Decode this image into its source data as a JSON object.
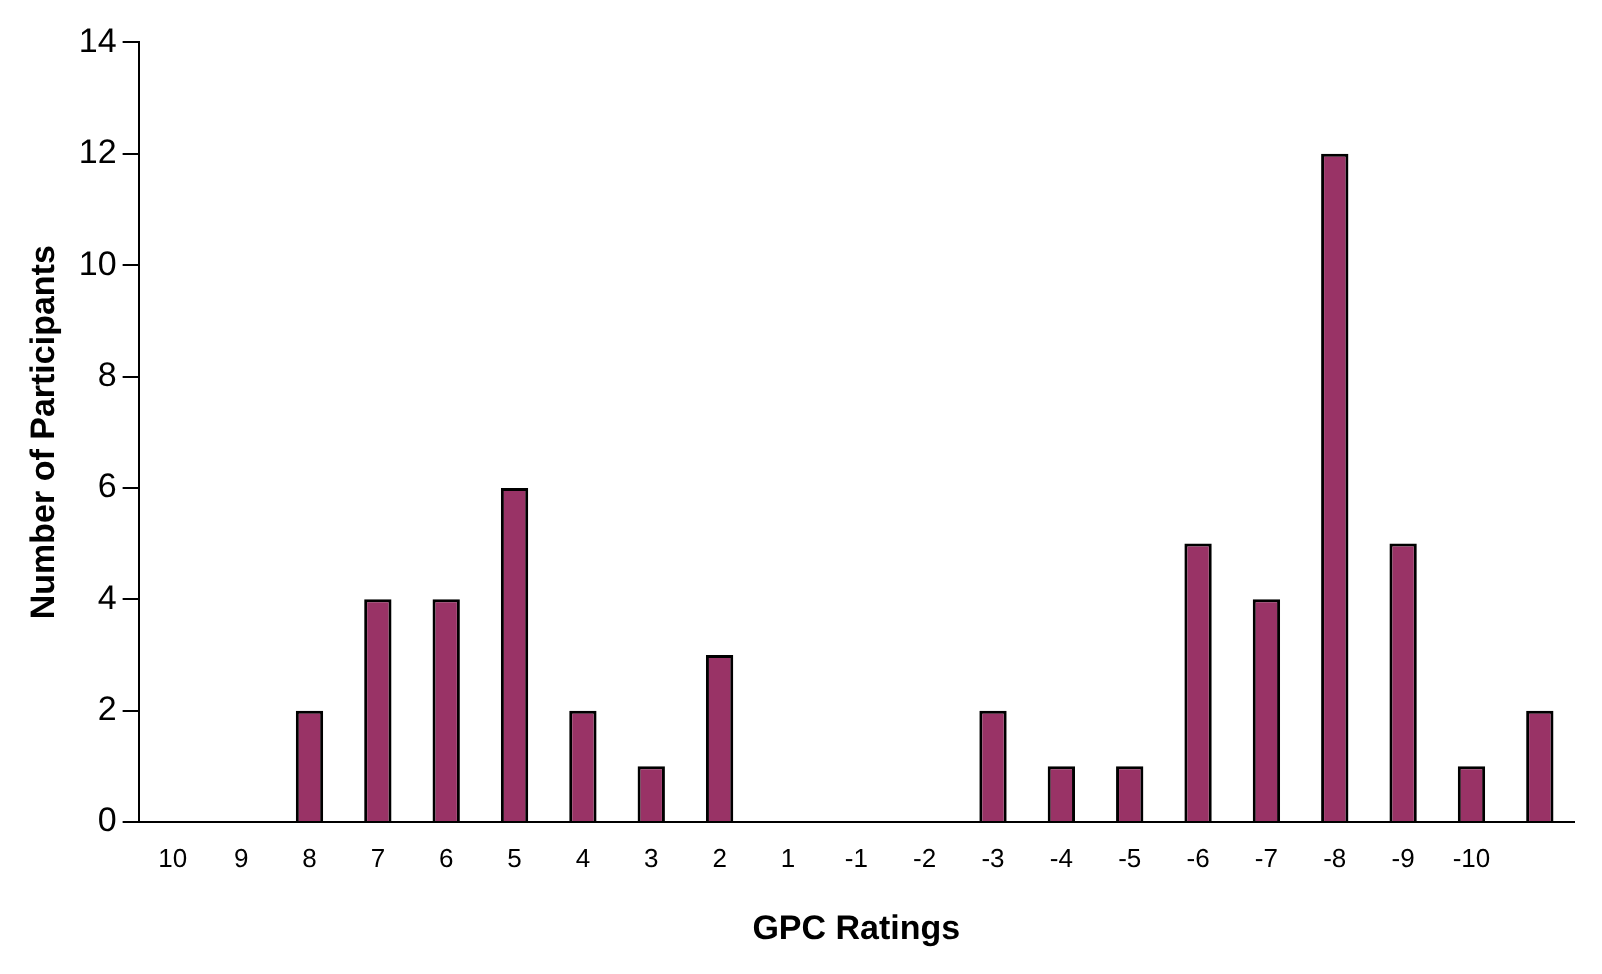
{
  "chart_data": {
    "type": "bar",
    "xlabel": "GPC Ratings",
    "ylabel": "Number of Participants",
    "categories": [
      "10",
      "9",
      "8",
      "7",
      "6",
      "5",
      "4",
      "3",
      "2",
      "1",
      "-1",
      "-2",
      "-3",
      "-4",
      "-5",
      "-6",
      "-7",
      "-8",
      "-9",
      "-10",
      null
    ],
    "values": [
      0,
      0,
      2,
      4,
      4,
      6,
      2,
      1,
      3,
      0,
      0,
      0,
      2,
      1,
      1,
      5,
      4,
      12,
      5,
      1,
      2
    ],
    "color": "#993366",
    "ylim": [
      0,
      14
    ],
    "yticks": [
      0,
      2,
      4,
      6,
      8,
      10,
      12,
      14
    ],
    "grid": false,
    "legend": false
  }
}
